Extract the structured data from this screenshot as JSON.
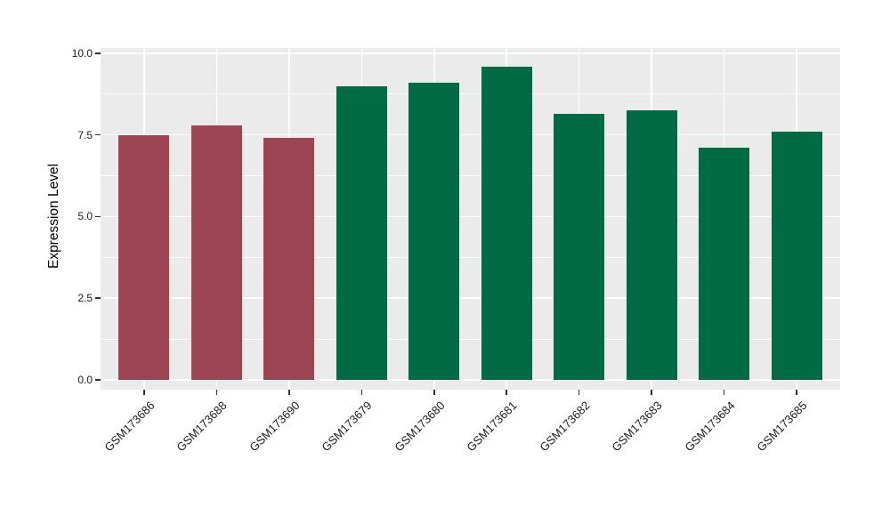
{
  "chart_data": {
    "type": "bar",
    "title": "",
    "xlabel": "",
    "ylabel": "Expression Level",
    "categories": [
      "GSM173686",
      "GSM173688",
      "GSM173690",
      "GSM173679",
      "GSM173680",
      "GSM173681",
      "GSM173682",
      "GSM173683",
      "GSM173684",
      "GSM173685"
    ],
    "values": [
      7.5,
      7.8,
      7.4,
      9.0,
      9.1,
      9.6,
      8.15,
      8.25,
      7.1,
      7.6
    ],
    "bar_colors": [
      "#9C4452",
      "#9C4452",
      "#9C4452",
      "#006B45",
      "#006B45",
      "#006B45",
      "#006B45",
      "#006B45",
      "#006B45",
      "#006B45"
    ],
    "group_colors": {
      "first_three_samples": "#9C4452",
      "remaining_samples": "#006B45"
    },
    "ylim": [
      -0.3,
      10.16
    ],
    "yticks": [
      0,
      2.5,
      5,
      7.5,
      10
    ],
    "ytick_labels": [
      "0.0",
      "2.5",
      "5.0",
      "7.5",
      "10.0"
    ],
    "yticks_minor": [
      1.25,
      3.75,
      6.25,
      8.75
    ],
    "grid": "major-and-minor-horizontal, major-vertical-at-bar-centers",
    "legend": false,
    "panel_background": "#EBEBEB",
    "grid_color": "#FFFFFF",
    "tick_color": "#333333",
    "text_color": "#1C1C1C",
    "bar_width_fraction": 0.7,
    "x_label_rotation_deg": 45
  }
}
